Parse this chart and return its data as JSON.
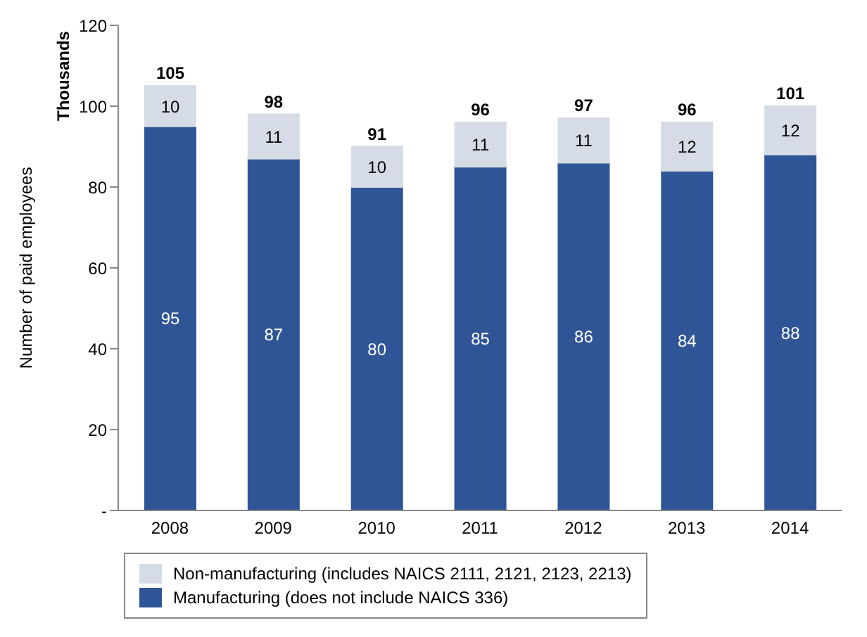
{
  "chart_data": {
    "type": "bar",
    "stacked": true,
    "ylabel": "Number of paid employees",
    "annotations": [
      "Thousands"
    ],
    "categories": [
      "2008",
      "2009",
      "2010",
      "2011",
      "2012",
      "2013",
      "2014"
    ],
    "series": [
      {
        "name": "Manufacturing (does not include NAICS 336)",
        "color": "#2f5597",
        "values": [
          95,
          87,
          80,
          85,
          86,
          84,
          88
        ]
      },
      {
        "name": "Non-manufacturing (includes NAICS 2111, 2121, 2123, 2213)",
        "color": "#d6dce5",
        "values": [
          10,
          11,
          10,
          11,
          11,
          12,
          12
        ]
      }
    ],
    "totals": [
      "105",
      "98",
      "91",
      "96",
      "97",
      "96",
      "101"
    ],
    "data_labels": true,
    "ylim": [
      0,
      120
    ],
    "yticks": [
      {
        "value": 0,
        "label": "-"
      },
      20,
      40,
      60,
      80,
      100,
      120
    ],
    "grid": false,
    "legend": "bottom"
  }
}
